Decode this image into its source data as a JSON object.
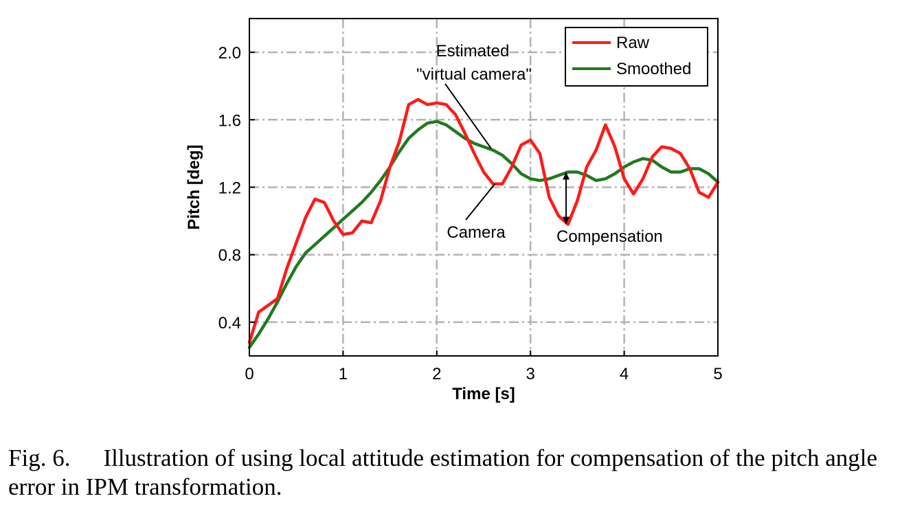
{
  "chart_data": {
    "type": "line",
    "xlabel": "Time [s]",
    "ylabel": "Pitch [deg]",
    "xlim": [
      0,
      5
    ],
    "ylim": [
      0.2,
      2.2
    ],
    "xticks": [
      "0",
      "1",
      "2",
      "3",
      "4",
      "5"
    ],
    "yticks": [
      "0.4",
      "0.8",
      "1.2",
      "1.6",
      "2.0"
    ],
    "grid": true,
    "legend_position": "top-right",
    "series": [
      {
        "name": "Raw",
        "color": "#ff1a1a",
        "points": [
          [
            0.0,
            0.28
          ],
          [
            0.1,
            0.46
          ],
          [
            0.2,
            0.5
          ],
          [
            0.3,
            0.54
          ],
          [
            0.4,
            0.72
          ],
          [
            0.5,
            0.87
          ],
          [
            0.6,
            1.02
          ],
          [
            0.7,
            1.13
          ],
          [
            0.8,
            1.11
          ],
          [
            0.9,
            1.0
          ],
          [
            1.0,
            0.92
          ],
          [
            1.1,
            0.93
          ],
          [
            1.2,
            1.0
          ],
          [
            1.3,
            0.99
          ],
          [
            1.4,
            1.12
          ],
          [
            1.5,
            1.32
          ],
          [
            1.6,
            1.47
          ],
          [
            1.7,
            1.69
          ],
          [
            1.8,
            1.72
          ],
          [
            1.9,
            1.69
          ],
          [
            2.0,
            1.7
          ],
          [
            2.1,
            1.69
          ],
          [
            2.2,
            1.63
          ],
          [
            2.3,
            1.52
          ],
          [
            2.4,
            1.4
          ],
          [
            2.5,
            1.29
          ],
          [
            2.6,
            1.22
          ],
          [
            2.7,
            1.22
          ],
          [
            2.8,
            1.32
          ],
          [
            2.9,
            1.45
          ],
          [
            3.0,
            1.48
          ],
          [
            3.1,
            1.4
          ],
          [
            3.2,
            1.14
          ],
          [
            3.3,
            1.03
          ],
          [
            3.4,
            0.98
          ],
          [
            3.5,
            1.12
          ],
          [
            3.6,
            1.32
          ],
          [
            3.7,
            1.42
          ],
          [
            3.8,
            1.57
          ],
          [
            3.9,
            1.44
          ],
          [
            4.0,
            1.25
          ],
          [
            4.1,
            1.16
          ],
          [
            4.2,
            1.25
          ],
          [
            4.3,
            1.38
          ],
          [
            4.4,
            1.44
          ],
          [
            4.5,
            1.43
          ],
          [
            4.6,
            1.4
          ],
          [
            4.7,
            1.31
          ],
          [
            4.8,
            1.17
          ],
          [
            4.9,
            1.14
          ],
          [
            5.0,
            1.23
          ]
        ]
      },
      {
        "name": "Smoothed",
        "color": "#1f7a1f",
        "points": [
          [
            0.0,
            0.25
          ],
          [
            0.1,
            0.33
          ],
          [
            0.2,
            0.42
          ],
          [
            0.3,
            0.52
          ],
          [
            0.4,
            0.63
          ],
          [
            0.5,
            0.73
          ],
          [
            0.6,
            0.81
          ],
          [
            0.7,
            0.86
          ],
          [
            0.8,
            0.91
          ],
          [
            0.9,
            0.96
          ],
          [
            1.0,
            1.01
          ],
          [
            1.1,
            1.06
          ],
          [
            1.2,
            1.11
          ],
          [
            1.3,
            1.17
          ],
          [
            1.4,
            1.24
          ],
          [
            1.5,
            1.32
          ],
          [
            1.6,
            1.41
          ],
          [
            1.7,
            1.49
          ],
          [
            1.8,
            1.54
          ],
          [
            1.9,
            1.58
          ],
          [
            2.0,
            1.59
          ],
          [
            2.1,
            1.57
          ],
          [
            2.2,
            1.53
          ],
          [
            2.3,
            1.49
          ],
          [
            2.4,
            1.46
          ],
          [
            2.5,
            1.44
          ],
          [
            2.6,
            1.42
          ],
          [
            2.7,
            1.39
          ],
          [
            2.8,
            1.34
          ],
          [
            2.9,
            1.28
          ],
          [
            3.0,
            1.25
          ],
          [
            3.1,
            1.24
          ],
          [
            3.2,
            1.25
          ],
          [
            3.3,
            1.27
          ],
          [
            3.4,
            1.29
          ],
          [
            3.5,
            1.29
          ],
          [
            3.6,
            1.27
          ],
          [
            3.7,
            1.24
          ],
          [
            3.8,
            1.25
          ],
          [
            3.9,
            1.28
          ],
          [
            4.0,
            1.32
          ],
          [
            4.1,
            1.35
          ],
          [
            4.2,
            1.37
          ],
          [
            4.3,
            1.36
          ],
          [
            4.4,
            1.32
          ],
          [
            4.5,
            1.29
          ],
          [
            4.6,
            1.29
          ],
          [
            4.7,
            1.31
          ],
          [
            4.8,
            1.31
          ],
          [
            4.9,
            1.28
          ],
          [
            5.0,
            1.23
          ]
        ]
      }
    ],
    "annotations": [
      {
        "lines": [
          "Estimated",
          "\"virtual camera\""
        ],
        "points_to": [
          2.58,
          1.43
        ]
      },
      {
        "lines": [
          "Camera"
        ],
        "points_to": [
          2.62,
          1.22
        ]
      },
      {
        "lines": [
          "Compensation"
        ],
        "arrow_x": 3.38,
        "arrow_y": [
          1.29,
          0.98
        ]
      }
    ]
  },
  "caption": {
    "fig_no": "Fig. 6.",
    "text": "Illustration of using local attitude estimation for compensation of the pitch angle error in IPM transformation."
  }
}
